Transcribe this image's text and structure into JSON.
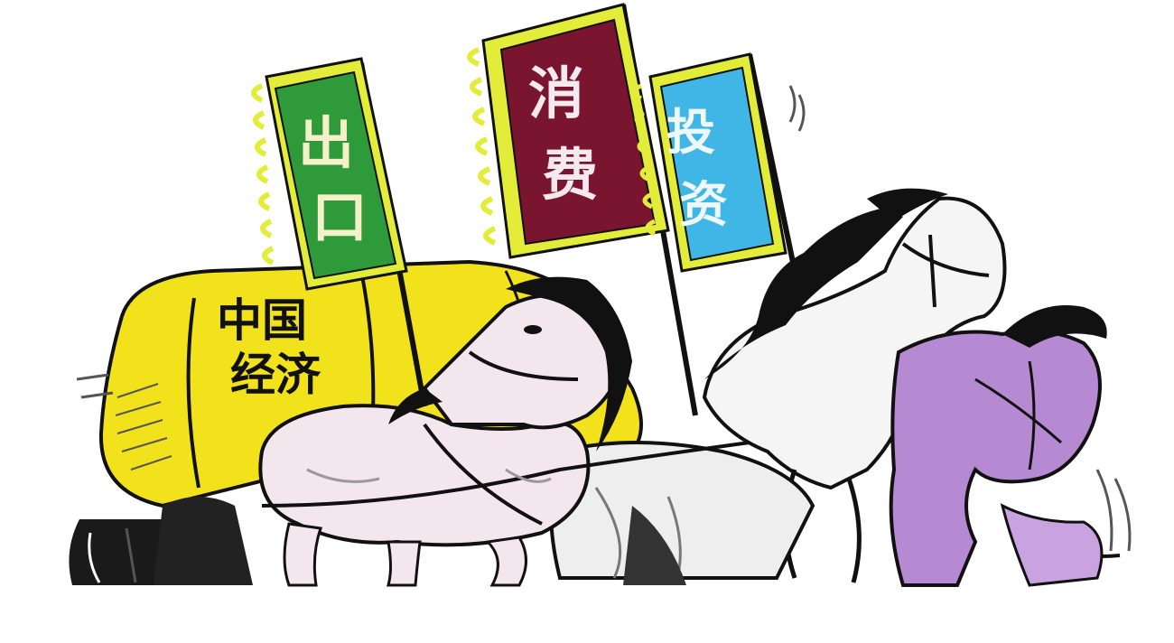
{
  "illustration": {
    "banners": {
      "export": {
        "char1": "出",
        "char2": "口",
        "color": "#2f9a3a"
      },
      "consumption": {
        "char1": "消",
        "char2": "费",
        "color": "#7a1530"
      },
      "investment": {
        "char1": "投",
        "char2": "资",
        "color": "#3fb6e6"
      }
    },
    "cargo": {
      "line1": "中国",
      "line2": "经济",
      "color": "#f2e21b"
    },
    "horses": [
      "white-horse",
      "grey-horse",
      "purple-horse"
    ],
    "palette": {
      "ink": "#111111",
      "fringe": "#e4ec3a",
      "white_horse": "#f3e6ec",
      "purple_horse": "#b58ad2"
    }
  }
}
